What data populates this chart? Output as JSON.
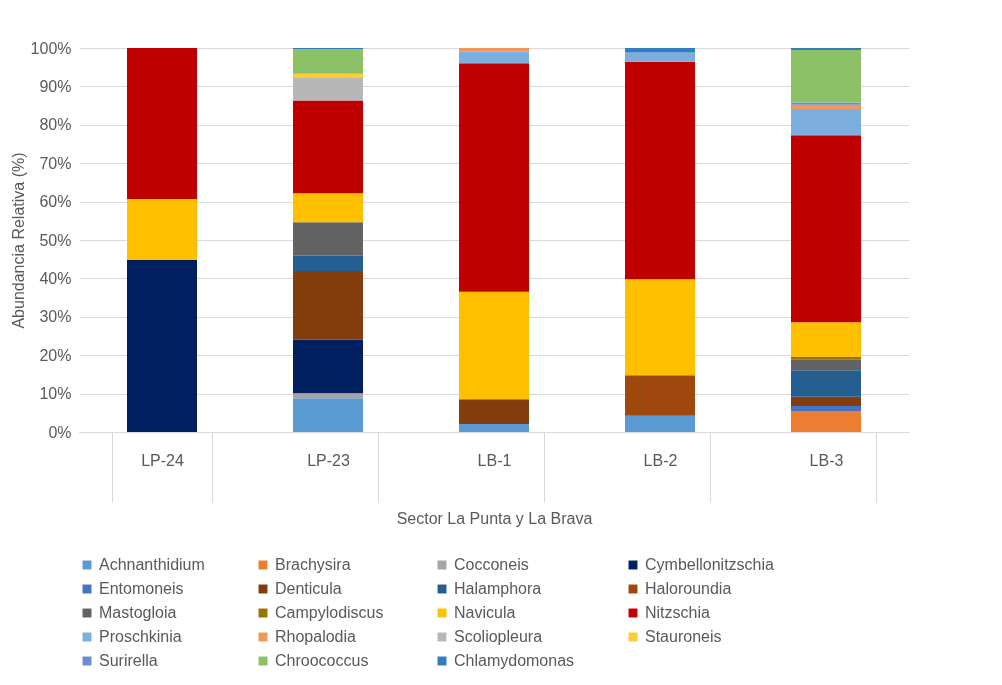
{
  "chart_data": {
    "type": "bar",
    "stacked": true,
    "xlabel": "Sector La Punta y La Brava",
    "ylabel": "Abundancia Relativa (%)",
    "categories": [
      "LP-24",
      "LP-23",
      "LB-1",
      "LB-2",
      "LB-3"
    ],
    "ylim": [
      0,
      100
    ],
    "yticks": [
      {
        "value": 0,
        "label": "0%"
      },
      {
        "value": 10,
        "label": "10%"
      },
      {
        "value": 20,
        "label": "20%"
      },
      {
        "value": 30,
        "label": "30%"
      },
      {
        "value": 40,
        "label": "40%"
      },
      {
        "value": 50,
        "label": "50%"
      },
      {
        "value": 60,
        "label": "60%"
      },
      {
        "value": 70,
        "label": "70%"
      },
      {
        "value": 80,
        "label": "80%"
      },
      {
        "value": 90,
        "label": "90%"
      },
      {
        "value": 100,
        "label": "100%"
      }
    ],
    "grid": "y",
    "legend": "bottom",
    "series": [
      {
        "name": "Achnanthidium",
        "color": "#5b9bd5",
        "values": [
          null,
          8.8,
          2.1,
          4.2,
          null
        ]
      },
      {
        "name": "Brachysira",
        "color": "#ed7d31",
        "values": [
          null,
          null,
          null,
          null,
          5.5
        ]
      },
      {
        "name": "Cocconeis",
        "color": "#a5a5a5",
        "values": [
          null,
          1.3,
          null,
          null,
          null
        ]
      },
      {
        "name": "Cymbellonitzschia",
        "color": "#002060",
        "values": [
          44.8,
          14.0,
          null,
          null,
          null
        ]
      },
      {
        "name": "Entomoneis",
        "color": "#4472c4",
        "values": [
          null,
          null,
          null,
          null,
          1.3
        ]
      },
      {
        "name": "Denticula",
        "color": "#843c0c",
        "values": [
          null,
          17.8,
          6.4,
          null,
          2.4
        ]
      },
      {
        "name": "Halamphora",
        "color": "#255e91",
        "values": [
          null,
          4.0,
          null,
          null,
          6.9
        ]
      },
      {
        "name": "Haloroundia",
        "color": "#9e480e",
        "values": [
          null,
          null,
          null,
          10.6,
          null
        ]
      },
      {
        "name": "Mastogloia",
        "color": "#636363",
        "values": [
          null,
          8.7,
          null,
          null,
          2.7
        ]
      },
      {
        "name": "Campylodiscus",
        "color": "#997300",
        "values": [
          null,
          null,
          null,
          null,
          0.7
        ]
      },
      {
        "name": "Navicula",
        "color": "#ffc000",
        "values": [
          15.9,
          7.6,
          28.0,
          25.0,
          9.1
        ]
      },
      {
        "name": "Nitzschia",
        "color": "#c00000",
        "values": [
          39.3,
          24.1,
          59.5,
          56.6,
          48.7
        ]
      },
      {
        "name": "Proschkinia",
        "color": "#7cafdd",
        "values": [
          null,
          null,
          3.0,
          2.4,
          6.8
        ]
      },
      {
        "name": "Rhopalodia",
        "color": "#f1975a",
        "values": [
          null,
          null,
          1.0,
          null,
          1.1
        ]
      },
      {
        "name": "Scoliopleura",
        "color": "#b7b7b7",
        "values": [
          null,
          6.1,
          null,
          null,
          null
        ]
      },
      {
        "name": "Stauroneis",
        "color": "#ffcd33",
        "values": [
          null,
          0.9,
          null,
          null,
          null
        ]
      },
      {
        "name": "Surirella",
        "color": "#698ed0",
        "values": [
          null,
          null,
          null,
          null,
          0.6
        ]
      },
      {
        "name": "Chroococcus",
        "color": "#8cc168",
        "values": [
          null,
          6.4,
          null,
          null,
          13.7
        ]
      },
      {
        "name": "Chlamydomonas",
        "color": "#327dc2",
        "values": [
          null,
          0.3,
          null,
          1.2,
          0.5
        ]
      }
    ]
  }
}
